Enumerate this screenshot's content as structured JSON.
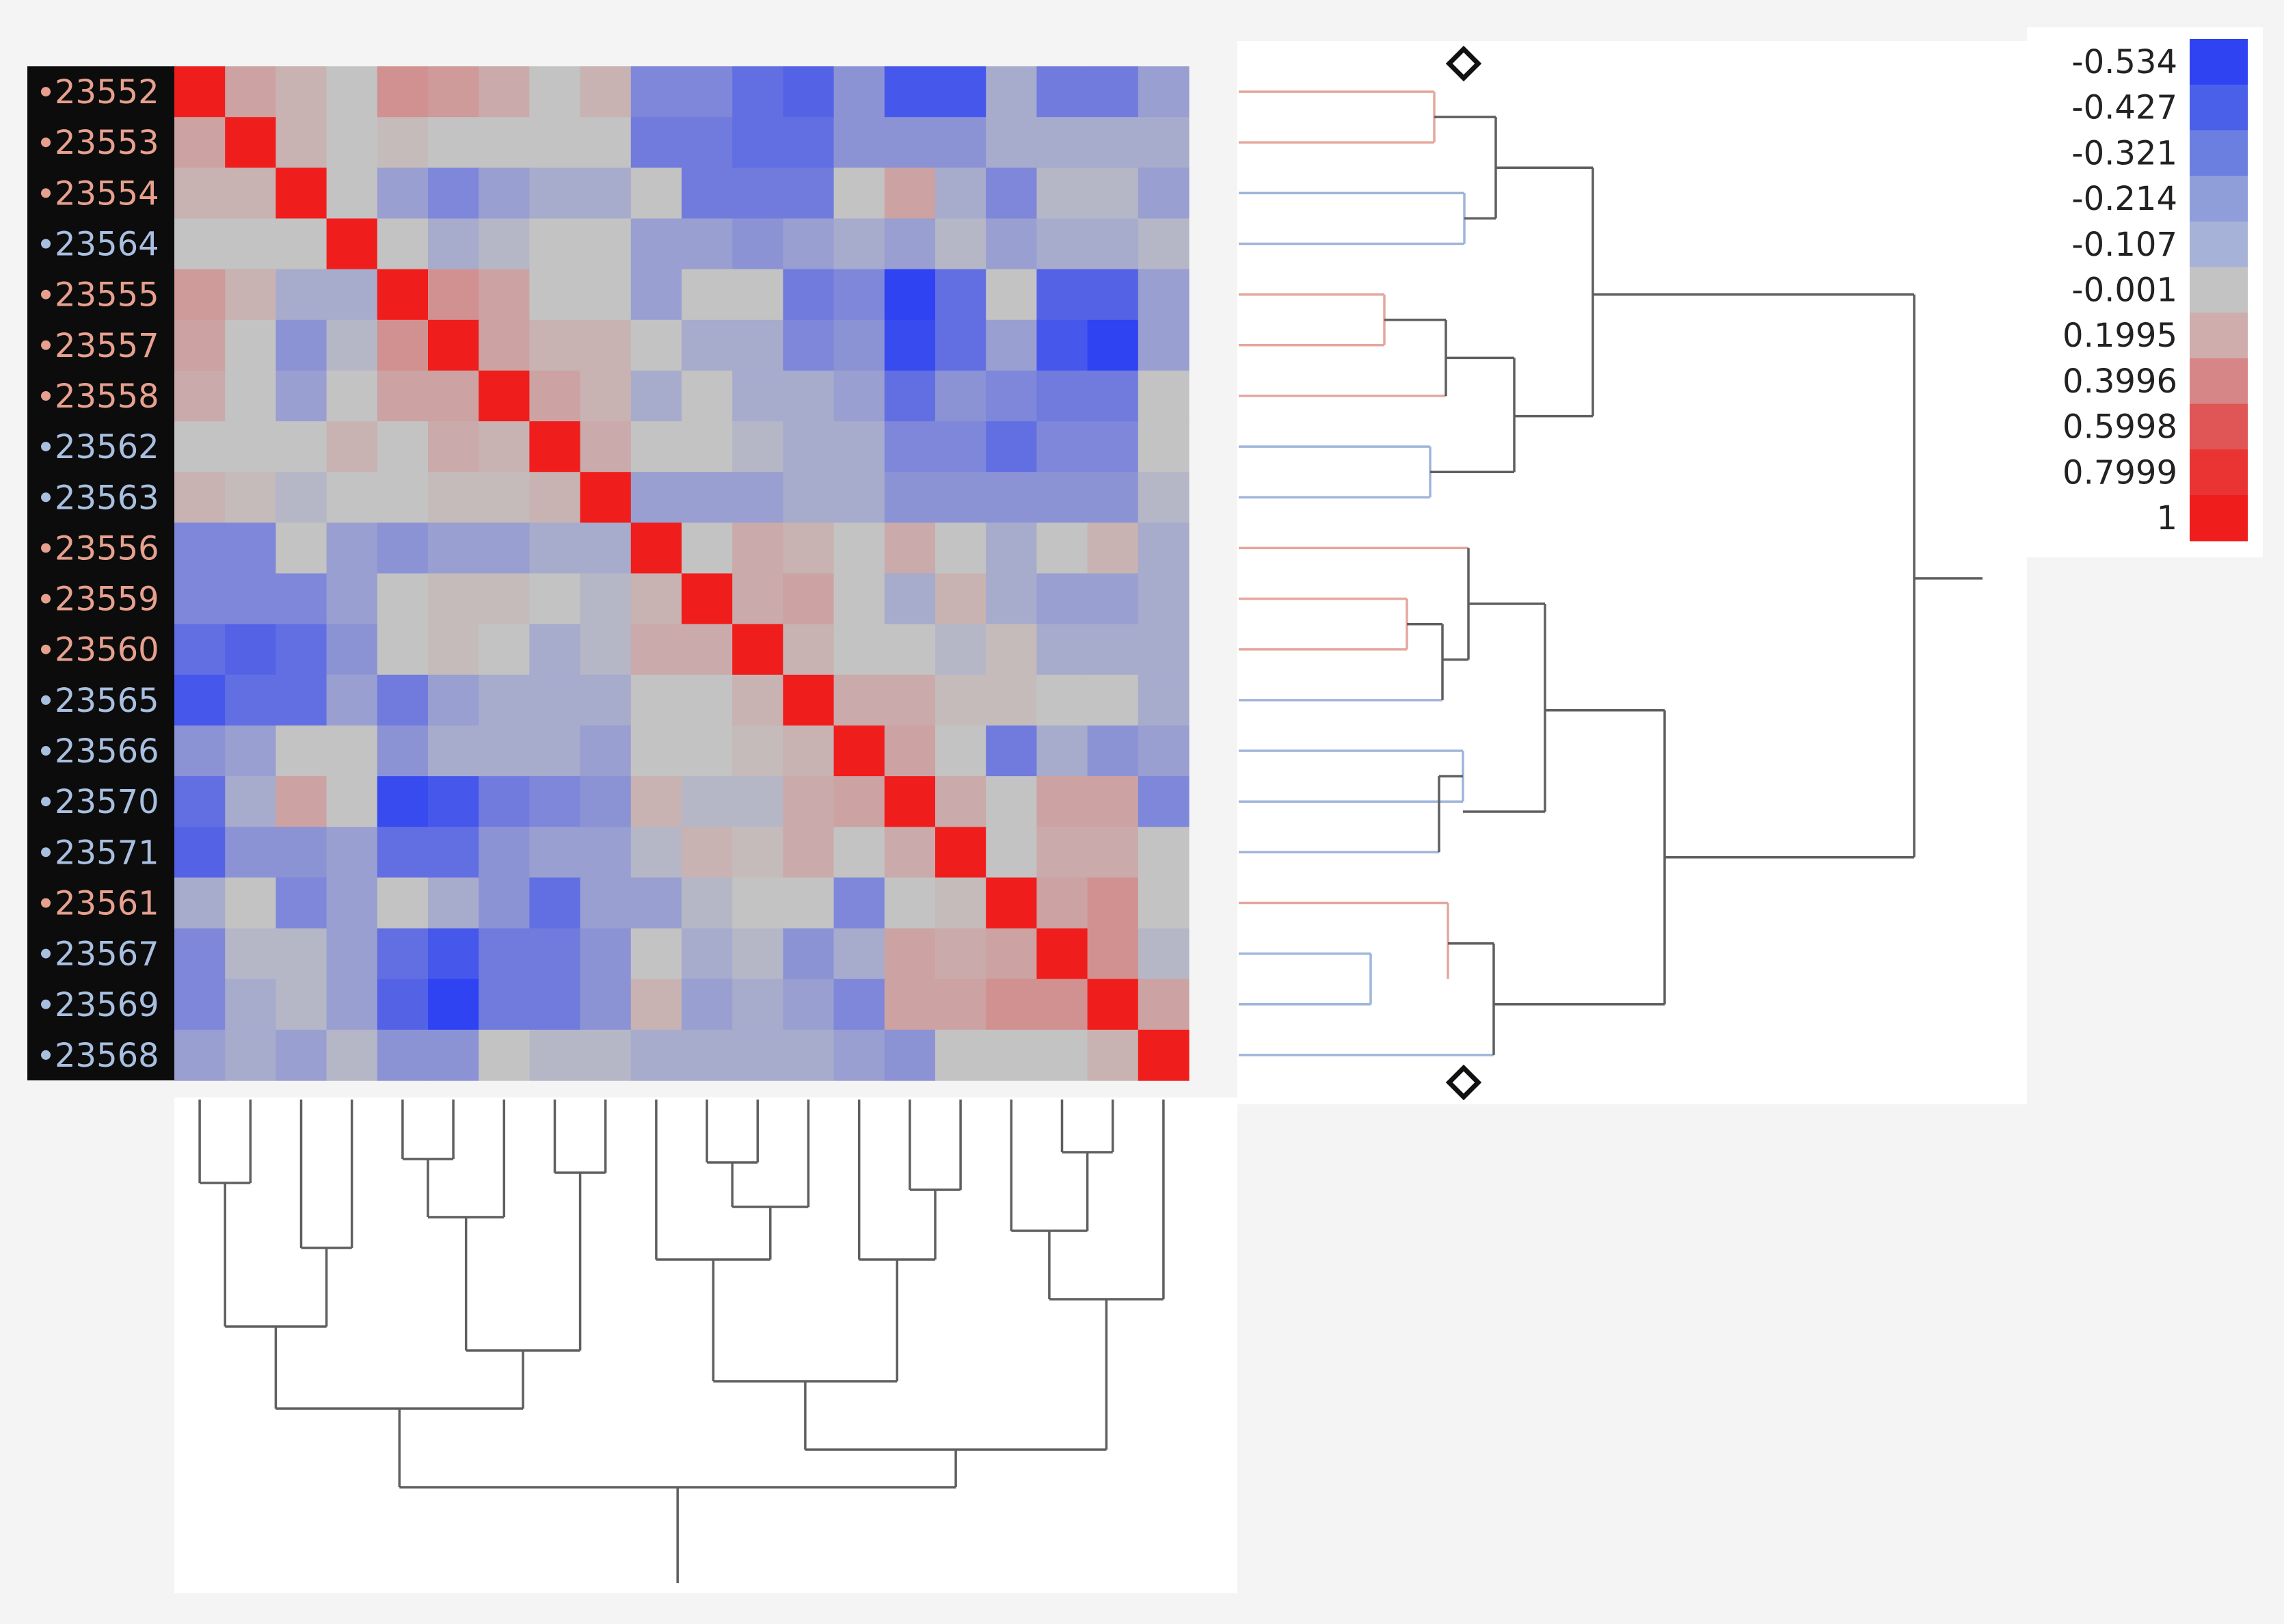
{
  "chart_data": {
    "type": "heatmap",
    "title": "",
    "xlabel": "",
    "ylabel": "",
    "row_labels": [
      {
        "text": "23552",
        "group": "a"
      },
      {
        "text": "23553",
        "group": "a"
      },
      {
        "text": "23554",
        "group": "a"
      },
      {
        "text": "23564",
        "group": "b"
      },
      {
        "text": "23555",
        "group": "a"
      },
      {
        "text": "23557",
        "group": "a"
      },
      {
        "text": "23558",
        "group": "a"
      },
      {
        "text": "23562",
        "group": "b"
      },
      {
        "text": "23563",
        "group": "b"
      },
      {
        "text": "23556",
        "group": "a"
      },
      {
        "text": "23559",
        "group": "a"
      },
      {
        "text": "23560",
        "group": "a"
      },
      {
        "text": "23565",
        "group": "b"
      },
      {
        "text": "23566",
        "group": "b"
      },
      {
        "text": "23570",
        "group": "b"
      },
      {
        "text": "23571",
        "group": "b"
      },
      {
        "text": "23561",
        "group": "a"
      },
      {
        "text": "23567",
        "group": "b"
      },
      {
        "text": "23569",
        "group": "b"
      },
      {
        "text": "23568",
        "group": "b"
      }
    ],
    "group_colors": {
      "a": "#e7a08e",
      "b": "#a9bfe0"
    },
    "matrix": [
      [
        1,
        0.2,
        0.1,
        0,
        0.3,
        0.25,
        0.15,
        0,
        0.1,
        -0.25,
        -0.25,
        -0.35,
        -0.4,
        -0.2,
        -0.45,
        -0.45,
        -0.1,
        -0.3,
        -0.3,
        -0.15
      ],
      [
        0.2,
        1,
        0.1,
        0,
        0.05,
        0,
        0,
        0,
        0,
        -0.3,
        -0.3,
        -0.35,
        -0.35,
        -0.2,
        -0.2,
        -0.2,
        -0.1,
        -0.1,
        -0.1,
        -0.1
      ],
      [
        0.1,
        0.1,
        1,
        0,
        -0.15,
        -0.25,
        -0.15,
        -0.1,
        -0.1,
        0,
        -0.3,
        -0.3,
        -0.3,
        0,
        0.2,
        -0.1,
        -0.25,
        -0.05,
        -0.05,
        -0.15
      ],
      [
        0,
        0,
        0,
        1,
        0,
        -0.1,
        -0.05,
        0,
        0,
        -0.15,
        -0.15,
        -0.2,
        -0.15,
        -0.1,
        -0.15,
        -0.05,
        -0.15,
        -0.1,
        -0.1,
        -0.05
      ],
      [
        0.25,
        0.1,
        -0.1,
        -0.1,
        1,
        0.3,
        0.2,
        0,
        0,
        -0.15,
        0,
        0,
        -0.3,
        -0.25,
        -0.55,
        -0.35,
        0,
        -0.4,
        -0.4,
        -0.15
      ],
      [
        0.2,
        0,
        -0.2,
        -0.05,
        0.3,
        1,
        0.2,
        0.1,
        0.1,
        0,
        -0.1,
        -0.1,
        -0.25,
        -0.2,
        -0.5,
        -0.35,
        -0.15,
        -0.45,
        -0.55,
        -0.15
      ],
      [
        0.15,
        0,
        -0.15,
        0,
        0.2,
        0.2,
        1,
        0.2,
        0.1,
        -0.1,
        0,
        -0.1,
        -0.1,
        -0.15,
        -0.35,
        -0.2,
        -0.25,
        -0.3,
        -0.3,
        0
      ],
      [
        0,
        0,
        0,
        0.1,
        0,
        0.15,
        0.1,
        1,
        0.15,
        0,
        0,
        -0.05,
        -0.1,
        -0.1,
        -0.25,
        -0.25,
        -0.35,
        -0.25,
        -0.25,
        0
      ],
      [
        0.1,
        0.05,
        -0.05,
        0,
        0,
        0.05,
        0.05,
        0.1,
        1,
        -0.15,
        -0.15,
        -0.15,
        -0.1,
        -0.1,
        -0.2,
        -0.2,
        -0.2,
        -0.2,
        -0.2,
        -0.05
      ],
      [
        -0.25,
        -0.25,
        0,
        -0.15,
        -0.2,
        -0.15,
        -0.15,
        -0.1,
        -0.1,
        1,
        0,
        0.15,
        0.1,
        0,
        0.15,
        0,
        -0.1,
        0,
        0.1,
        -0.1
      ],
      [
        -0.25,
        -0.25,
        -0.25,
        -0.15,
        0,
        0.05,
        0.05,
        0,
        -0.05,
        0.1,
        1,
        0.15,
        0.2,
        0,
        -0.1,
        0.1,
        -0.1,
        -0.15,
        -0.15,
        -0.1
      ],
      [
        -0.35,
        -0.4,
        -0.35,
        -0.2,
        0,
        0.05,
        0,
        -0.1,
        -0.05,
        0.15,
        0.15,
        1,
        0.1,
        0,
        0,
        -0.05,
        0.05,
        -0.1,
        -0.1,
        -0.1
      ],
      [
        -0.45,
        -0.35,
        -0.35,
        -0.15,
        -0.3,
        -0.15,
        -0.1,
        -0.1,
        -0.1,
        0,
        0,
        0.1,
        1,
        0.15,
        0.15,
        0.05,
        0.05,
        0,
        0,
        -0.1
      ],
      [
        -0.2,
        -0.15,
        0,
        0,
        -0.2,
        -0.1,
        -0.1,
        -0.1,
        -0.15,
        0,
        0,
        0.05,
        0.1,
        1,
        0.2,
        0,
        -0.3,
        -0.1,
        -0.2,
        -0.15
      ],
      [
        -0.35,
        -0.1,
        0.2,
        0,
        -0.5,
        -0.45,
        -0.3,
        -0.25,
        -0.2,
        0.1,
        -0.05,
        -0.05,
        0.15,
        0.2,
        1,
        0.15,
        0,
        0.2,
        0.2,
        -0.25
      ],
      [
        -0.4,
        -0.2,
        -0.2,
        -0.15,
        -0.35,
        -0.35,
        -0.2,
        -0.15,
        -0.15,
        -0.05,
        0.1,
        0.05,
        0.15,
        0,
        0.15,
        1,
        0,
        0.15,
        0.15,
        0
      ],
      [
        -0.1,
        0,
        -0.25,
        -0.15,
        0,
        -0.1,
        -0.2,
        -0.35,
        -0.15,
        -0.15,
        -0.05,
        0,
        0,
        -0.25,
        0,
        0.05,
        1,
        0.2,
        0.3,
        0
      ],
      [
        -0.25,
        -0.05,
        -0.05,
        -0.15,
        -0.35,
        -0.45,
        -0.3,
        -0.3,
        -0.2,
        0,
        -0.1,
        -0.05,
        -0.2,
        -0.1,
        0.2,
        0.15,
        0.2,
        1,
        0.3,
        -0.05
      ],
      [
        -0.25,
        -0.1,
        -0.05,
        -0.15,
        -0.4,
        -0.55,
        -0.3,
        -0.3,
        -0.2,
        0.1,
        -0.15,
        -0.1,
        -0.15,
        -0.25,
        0.2,
        0.2,
        0.3,
        0.3,
        1,
        0.2
      ],
      [
        -0.15,
        -0.1,
        -0.15,
        -0.05,
        -0.2,
        -0.2,
        0,
        -0.05,
        -0.05,
        -0.1,
        -0.1,
        -0.1,
        -0.1,
        -0.15,
        -0.2,
        0,
        0,
        0,
        0.1,
        1
      ]
    ],
    "legend": {
      "values": [
        "-0.534",
        "-0.427",
        "-0.321",
        "-0.214",
        "-0.107",
        "-0.001",
        "0.1995",
        "0.3996",
        "0.5998",
        "0.7999",
        "1"
      ],
      "colors": [
        "#2f43f2",
        "#4a60e8",
        "#6b7fe0",
        "#8f9ed8",
        "#a7b2d8",
        "#c3c3c3",
        "#cfadad",
        "#d68686",
        "#e05555",
        "#ea3434",
        "#f01d1d"
      ]
    },
    "row_dendrogram_colors": [
      "a",
      "a",
      "a",
      "b",
      "a",
      "a",
      "a",
      "b",
      "b",
      "a",
      "a",
      "a",
      "b",
      "b",
      "b",
      "b",
      "a",
      "b",
      "b",
      "b"
    ]
  }
}
